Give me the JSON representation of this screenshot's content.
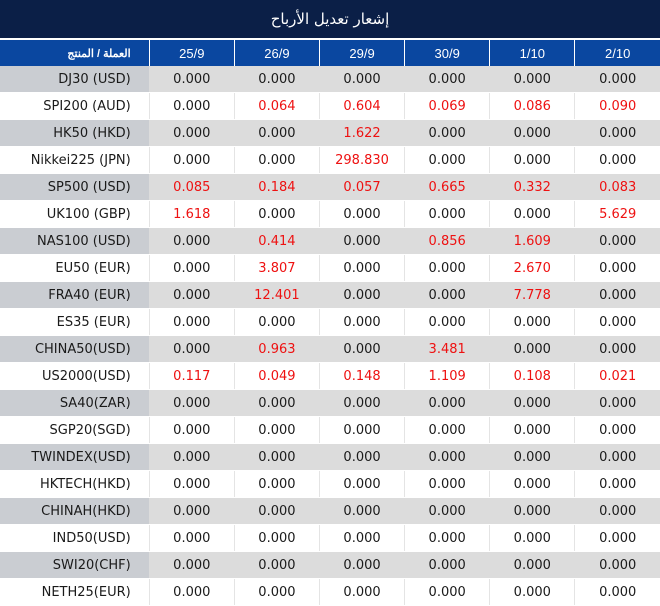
{
  "title": "إشعار تعديل الأرباح",
  "header": {
    "label_column": "العملة / المنتج",
    "dates": [
      "25/9",
      "26/9",
      "29/9",
      "30/9",
      "1/10",
      "2/10"
    ]
  },
  "colors": {
    "title_bg": "#0b1f47",
    "header_bg": "#0a47a0",
    "positive_value": "#ee1111",
    "shaded_row": "#dcdcdc",
    "shaded_label": "#cacdd2"
  },
  "rows": [
    {
      "product": "DJ30 (USD)",
      "values": [
        "0.000",
        "0.000",
        "0.000",
        "0.000",
        "0.000",
        "0.000"
      ]
    },
    {
      "product": "SPI200 (AUD)",
      "values": [
        "0.000",
        "0.064",
        "0.604",
        "0.069",
        "0.086",
        "0.090"
      ]
    },
    {
      "product": "HK50 (HKD)",
      "values": [
        "0.000",
        "0.000",
        "1.622",
        "0.000",
        "0.000",
        "0.000"
      ]
    },
    {
      "product": "Nikkei225 (JPN)",
      "values": [
        "0.000",
        "0.000",
        "298.830",
        "0.000",
        "0.000",
        "0.000"
      ]
    },
    {
      "product": "SP500 (USD)",
      "values": [
        "0.085",
        "0.184",
        "0.057",
        "0.665",
        "0.332",
        "0.083"
      ]
    },
    {
      "product": "UK100 (GBP)",
      "values": [
        "1.618",
        "0.000",
        "0.000",
        "0.000",
        "0.000",
        "5.629"
      ]
    },
    {
      "product": "NAS100 (USD)",
      "values": [
        "0.000",
        "0.414",
        "0.000",
        "0.856",
        "1.609",
        "0.000"
      ]
    },
    {
      "product": "EU50 (EUR)",
      "values": [
        "0.000",
        "3.807",
        "0.000",
        "0.000",
        "2.670",
        "0.000"
      ]
    },
    {
      "product": "FRA40 (EUR)",
      "values": [
        "0.000",
        "12.401",
        "0.000",
        "0.000",
        "7.778",
        "0.000"
      ]
    },
    {
      "product": "ES35 (EUR)",
      "values": [
        "0.000",
        "0.000",
        "0.000",
        "0.000",
        "0.000",
        "0.000"
      ]
    },
    {
      "product": "CHINA50(USD)",
      "values": [
        "0.000",
        "0.963",
        "0.000",
        "3.481",
        "0.000",
        "0.000"
      ]
    },
    {
      "product": "US2000(USD)",
      "values": [
        "0.117",
        "0.049",
        "0.148",
        "1.109",
        "0.108",
        "0.021"
      ]
    },
    {
      "product": "SA40(ZAR)",
      "values": [
        "0.000",
        "0.000",
        "0.000",
        "0.000",
        "0.000",
        "0.000"
      ]
    },
    {
      "product": "SGP20(SGD)",
      "values": [
        "0.000",
        "0.000",
        "0.000",
        "0.000",
        "0.000",
        "0.000"
      ]
    },
    {
      "product": "TWINDEX(USD)",
      "values": [
        "0.000",
        "0.000",
        "0.000",
        "0.000",
        "0.000",
        "0.000"
      ]
    },
    {
      "product": "HKTECH(HKD)",
      "values": [
        "0.000",
        "0.000",
        "0.000",
        "0.000",
        "0.000",
        "0.000"
      ]
    },
    {
      "product": "CHINAH(HKD)",
      "values": [
        "0.000",
        "0.000",
        "0.000",
        "0.000",
        "0.000",
        "0.000"
      ]
    },
    {
      "product": "IND50(USD)",
      "values": [
        "0.000",
        "0.000",
        "0.000",
        "0.000",
        "0.000",
        "0.000"
      ]
    },
    {
      "product": "SWI20(CHF)",
      "values": [
        "0.000",
        "0.000",
        "0.000",
        "0.000",
        "0.000",
        "0.000"
      ]
    },
    {
      "product": "NETH25(EUR)",
      "values": [
        "0.000",
        "0.000",
        "0.000",
        "0.000",
        "0.000",
        "0.000"
      ]
    }
  ]
}
